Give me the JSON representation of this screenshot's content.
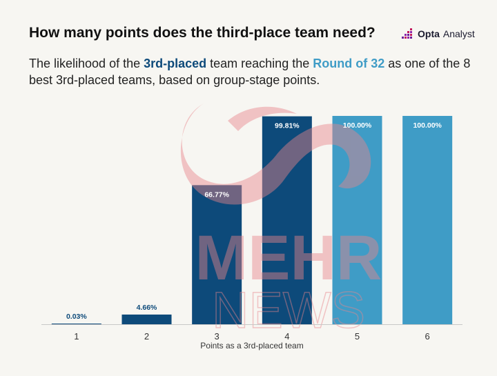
{
  "title": "How many points does the third-place team need?",
  "brand": {
    "strong": "Opta",
    "light": "Analyst",
    "icon": "opta-logo-icon"
  },
  "subtitle": {
    "pre": "The likelihood of the ",
    "hl1": "3rd-placed",
    "mid": " team reaching the ",
    "hl2": "Round of 32",
    "post": " as one of the 8 best 3rd-placed teams, based on group-stage points."
  },
  "watermark": {
    "line1": "MEHR",
    "line2": "NEWS"
  },
  "colors": {
    "dark": "#0d4a7a",
    "light": "#3f9cc6",
    "watermark_red": "#e8858b",
    "axis": "#c7c7c7"
  },
  "chart_data": {
    "type": "bar",
    "categories": [
      "1",
      "2",
      "3",
      "4",
      "5",
      "6"
    ],
    "values": [
      0.03,
      4.66,
      66.77,
      99.81,
      100.0,
      100.0
    ],
    "value_labels": [
      "0.03%",
      "4.66%",
      "66.77%",
      "99.81%",
      "100.00%",
      "100.00%"
    ],
    "bar_colors": [
      "#0d4a7a",
      "#0d4a7a",
      "#0d4a7a",
      "#0d4a7a",
      "#3f9cc6",
      "#3f9cc6"
    ],
    "xlabel": "Points as a 3rd-placed team",
    "ylabel": "",
    "ylim": [
      0,
      100
    ],
    "grid": false,
    "legend": "none"
  }
}
